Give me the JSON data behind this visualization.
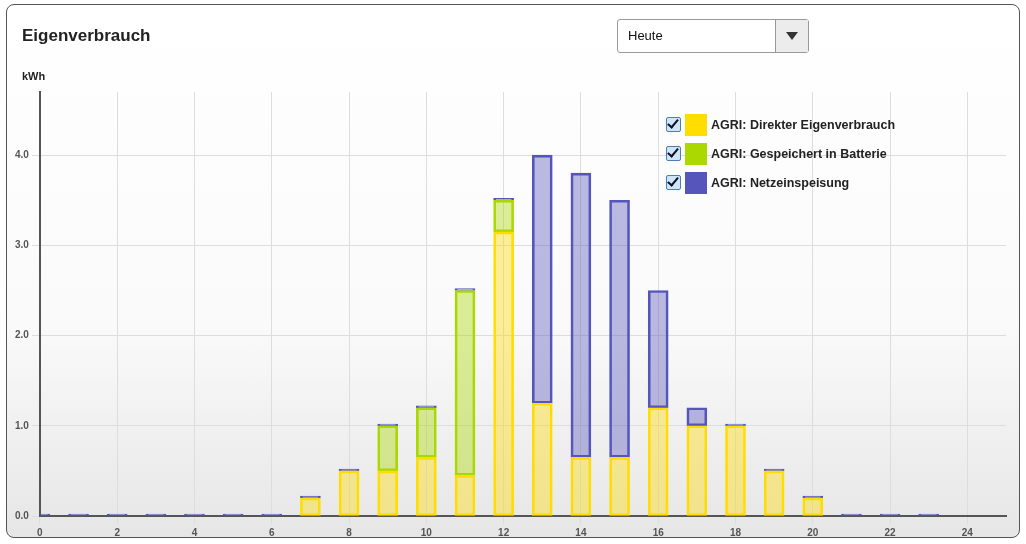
{
  "chart_data": {
    "type": "bar",
    "title": "Eigenverbrauch",
    "ylabel": "kWh",
    "annotations": [
      "Heute"
    ],
    "stacked": true,
    "grid": true,
    "legend": "top right",
    "x": [
      0,
      1,
      2,
      3,
      4,
      5,
      6,
      7,
      8,
      9,
      10,
      11,
      12,
      13,
      14,
      15,
      16,
      17,
      18,
      19,
      20,
      21,
      22,
      23
    ],
    "xlim": [
      0,
      25
    ],
    "xticks": [
      0,
      2,
      4,
      6,
      8,
      10,
      12,
      14,
      16,
      18,
      20,
      22,
      24
    ],
    "ylim": [
      0,
      4.7
    ],
    "yticks": [
      {
        "value": 0,
        "label": "0.0"
      },
      {
        "value": 1,
        "label": "1.0"
      },
      {
        "value": 2,
        "label": "2.0"
      },
      {
        "value": 3,
        "label": "3.0"
      },
      {
        "value": 4,
        "label": "4.0"
      }
    ],
    "series": [
      {
        "name": "AGRI: Direkter Eigenverbrauch",
        "color": "#ffdd00",
        "values": [
          null,
          null,
          null,
          null,
          null,
          null,
          null,
          0.2,
          0.5,
          0.5,
          0.65,
          0.45,
          3.15,
          1.25,
          0.65,
          0.65,
          1.2,
          1.0,
          1.0,
          0.5,
          0.2,
          null,
          null,
          null
        ]
      },
      {
        "name": "AGRI: Gespeichert in Batterie",
        "color": "#aad800",
        "values": [
          null,
          null,
          null,
          null,
          null,
          null,
          null,
          null,
          null,
          0.5,
          0.55,
          2.05,
          0.35,
          null,
          null,
          null,
          null,
          null,
          null,
          null,
          null,
          null,
          null,
          null
        ]
      },
      {
        "name": "AGRI: Netzeinspeisung",
        "color": "#5555bb",
        "values": [
          0.02,
          0.02,
          0.02,
          0.02,
          0.02,
          0.02,
          0.02,
          0.02,
          0.02,
          0.02,
          0.02,
          0.02,
          0.02,
          2.75,
          3.15,
          2.85,
          1.3,
          0.2,
          0.02,
          0.02,
          0.02,
          0.02,
          0.02,
          0.02
        ]
      }
    ]
  }
}
